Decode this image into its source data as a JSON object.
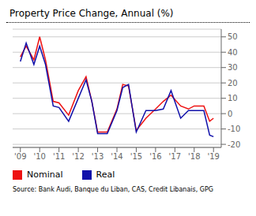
{
  "chart_data": {
    "type": "line",
    "title": "Property Price Change, Annual (%)",
    "source": "Source: Bank Audi, Banque du Liban, CAS, Credit Libanais, GPG",
    "x": [
      2009.0,
      2009.3,
      2009.7,
      2010.0,
      2010.3,
      2010.7,
      2011.0,
      2011.5,
      2012.0,
      2012.4,
      2012.7,
      2013.0,
      2013.5,
      2014.0,
      2014.3,
      2014.6,
      2015.0,
      2015.5,
      2016.0,
      2016.4,
      2016.8,
      2017.3,
      2017.7,
      2018.0,
      2018.5,
      2018.8,
      2019.0
    ],
    "series": [
      {
        "name": "Nominal",
        "color": "#ee1111",
        "values": [
          37,
          44,
          35,
          50,
          35,
          8,
          7,
          -1,
          15,
          24,
          8,
          -12,
          -12,
          3,
          19,
          18,
          -11,
          -3,
          3,
          8,
          12,
          5,
          3,
          5,
          5,
          -5,
          -3
        ]
      },
      {
        "name": "Real",
        "color": "#1111aa",
        "values": [
          34,
          46,
          32,
          44,
          32,
          5,
          4,
          -5,
          10,
          22,
          8,
          -13,
          -13,
          2,
          17,
          19,
          -12,
          2,
          2,
          3,
          15,
          -3,
          2,
          2,
          2,
          -14,
          -15
        ]
      }
    ],
    "xlim": [
      2008.6,
      2019.4
    ],
    "xticks": [
      {
        "value": 2009,
        "label": "'09"
      },
      {
        "value": 2010,
        "label": "'10"
      },
      {
        "value": 2011,
        "label": "'11"
      },
      {
        "value": 2012,
        "label": "'12"
      },
      {
        "value": 2013,
        "label": "'13"
      },
      {
        "value": 2014,
        "label": "'14"
      },
      {
        "value": 2015,
        "label": "'15"
      },
      {
        "value": 2016,
        "label": "'16"
      },
      {
        "value": 2017,
        "label": "'17"
      },
      {
        "value": 2018,
        "label": "'18"
      },
      {
        "value": 2019,
        "label": "'19"
      }
    ],
    "ylim": [
      -22,
      55
    ],
    "yticks": [
      -20,
      -10,
      0,
      10,
      20,
      30,
      40,
      50
    ],
    "grid": true,
    "legend": "bottom"
  }
}
